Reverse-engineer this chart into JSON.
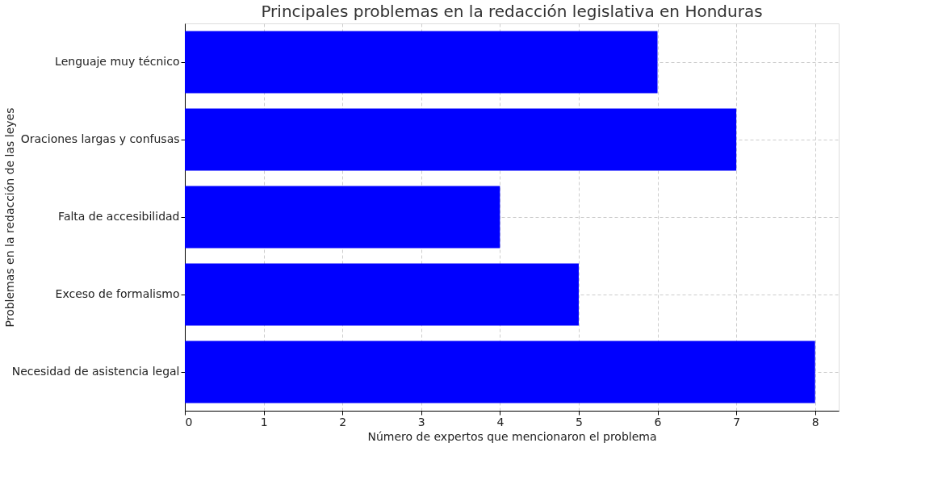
{
  "chart_data": {
    "type": "bar",
    "orientation": "horizontal",
    "title": "Principales problemas en la redacción legislativa en Honduras",
    "xlabel": "Número de expertos que mencionaron el problema",
    "ylabel": "Problemas en la redacción de las leyes",
    "categories": [
      "Lenguaje muy técnico",
      "Oraciones largas y confusas",
      "Falta de accesibilidad",
      "Exceso de formalismo",
      "Necesidad de asistencia legal"
    ],
    "values": [
      6,
      7,
      4,
      5,
      8
    ],
    "color": "#0000ff",
    "xlim": [
      0,
      8.3
    ],
    "xticks": [
      0,
      1,
      2,
      3,
      4,
      5,
      6,
      7,
      8
    ],
    "grid": true,
    "line_style": "dashed"
  }
}
